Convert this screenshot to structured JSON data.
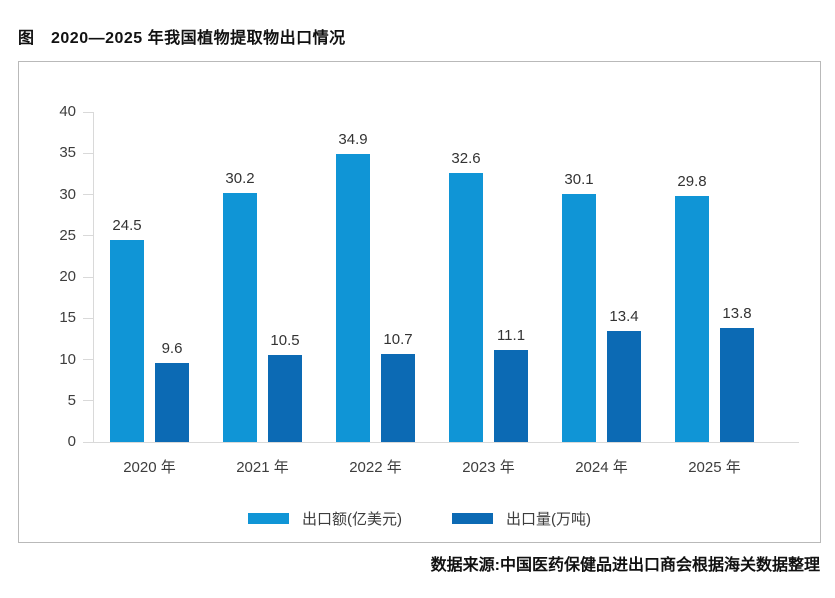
{
  "page": {
    "title": "图　2020—2025 年我国植物提取物出口情况",
    "source": "数据来源:中国医药保健品进出口商会根据海关数据整理"
  },
  "chart_data": {
    "type": "bar",
    "title": "2020—2025 年我国植物提取物出口情况",
    "categories": [
      "2020 年",
      "2021 年",
      "2022 年",
      "2023 年",
      "2024 年",
      "2025 年"
    ],
    "series": [
      {
        "name": "出口额(亿美元)",
        "color": "#1095d6",
        "values": [
          24.5,
          30.2,
          34.9,
          32.6,
          30.1,
          29.8
        ]
      },
      {
        "name": "出口量(万吨)",
        "color": "#0c6ab4",
        "values": [
          9.6,
          10.5,
          10.7,
          11.1,
          13.4,
          13.8
        ]
      }
    ],
    "xlabel": "",
    "ylabel": "",
    "ylim": [
      0,
      40
    ],
    "yticks": [
      0,
      5,
      10,
      15,
      20,
      25,
      30,
      35,
      40
    ],
    "grid": false,
    "legend_position": "bottom",
    "value_labels": true,
    "colors": {
      "axis": "#d9d9d9",
      "text": "#3d3d3d",
      "box_border": "#b9b9b9"
    }
  }
}
